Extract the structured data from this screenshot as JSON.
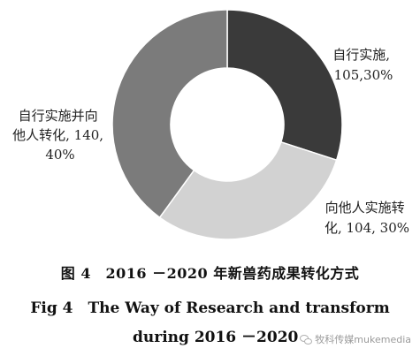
{
  "chart_data": {
    "type": "pie",
    "donut": true,
    "slices": [
      {
        "label_lines": [
          "自行实施,",
          "105,30%"
        ],
        "value": 105,
        "percent": 30,
        "color": "#3a3a3a"
      },
      {
        "label_lines": [
          "向他人实施转",
          "化, 104, 30%"
        ],
        "value": 104,
        "percent": 30,
        "color": "#d2d2d2"
      },
      {
        "label_lines": [
          "自行实施并向",
          "他人转化, 140,",
          "40%"
        ],
        "value": 140,
        "percent": 40,
        "color": "#7b7b7b"
      }
    ],
    "legend": "none"
  },
  "caption": {
    "cn": "图 4　2016 －2020 年新兽药成果转化方式",
    "en_line1": "Fig 4　The Way of Research and transform",
    "en_line2": "during 2016 －2020"
  },
  "watermark": {
    "text": "牧科传媒mukemedia",
    "icon": "wechat-icon"
  }
}
